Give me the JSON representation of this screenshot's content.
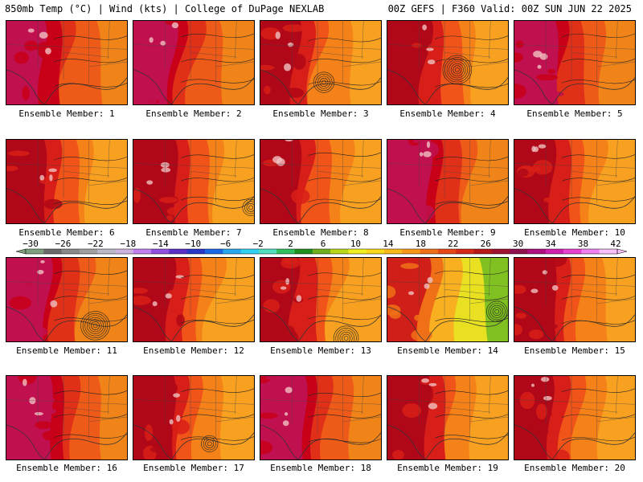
{
  "header": {
    "left": "850mb Temp (°C) | Wind (kts) | College of DuPage NEXLAB",
    "right": "00Z GEFS | F360 Valid: 00Z SUN JUN 22 2025"
  },
  "members": [
    {
      "label": "Ensemble Member: 1",
      "palette": "hot",
      "low": null
    },
    {
      "label": "Ensemble Member: 2",
      "palette": "hot",
      "low": null
    },
    {
      "label": "Ensemble Member: 3",
      "palette": "warm",
      "low": "gulf-mid"
    },
    {
      "label": "Ensemble Member: 4",
      "palette": "warm",
      "low": "gulf-strong"
    },
    {
      "label": "Ensemble Member: 5",
      "palette": "hot",
      "low": null
    },
    {
      "label": "Ensemble Member: 6",
      "palette": "warm",
      "low": null
    },
    {
      "label": "Ensemble Member: 7",
      "palette": "warm",
      "low": "florida"
    },
    {
      "label": "Ensemble Member: 8",
      "palette": "warm",
      "low": null
    },
    {
      "label": "Ensemble Member: 9",
      "palette": "hot",
      "low": null
    },
    {
      "label": "Ensemble Member: 10",
      "palette": "warm",
      "low": null
    },
    {
      "label": "Ensemble Member: 11",
      "palette": "hot",
      "low": "coast-strong"
    },
    {
      "label": "Ensemble Member: 12",
      "palette": "warm",
      "low": null
    },
    {
      "label": "Ensemble Member: 13",
      "palette": "warm",
      "low": "coast-mid"
    },
    {
      "label": "Ensemble Member: 14",
      "palette": "cool",
      "low": "east"
    },
    {
      "label": "Ensemble Member: 15",
      "palette": "warm",
      "low": null
    },
    {
      "label": "Ensemble Member: 16",
      "palette": "hot",
      "low": null
    },
    {
      "label": "Ensemble Member: 17",
      "palette": "warm",
      "low": "coast-small"
    },
    {
      "label": "Ensemble Member: 18",
      "palette": "hot",
      "low": null
    },
    {
      "label": "Ensemble Member: 19",
      "palette": "warm",
      "low": null
    },
    {
      "label": "Ensemble Member: 20",
      "palette": "warm",
      "low": null
    }
  ],
  "colorbar": {
    "ticks": [
      "-30",
      "-26",
      "-22",
      "-18",
      "-14",
      "-10",
      "-6",
      "-2",
      "2",
      "6",
      "10",
      "14",
      "18",
      "22",
      "26",
      "30",
      "34",
      "38",
      "42"
    ],
    "colors": [
      "#7fa07f",
      "#6a6a6a",
      "#8a8a8a",
      "#a0a0a0",
      "#b9b9c7",
      "#cdb2e0",
      "#c080f0",
      "#9050e0",
      "#5a30c8",
      "#2838c8",
      "#1a68e8",
      "#25a8f0",
      "#30d0f0",
      "#50e0c0",
      "#30c060",
      "#209020",
      "#70b020",
      "#b8d818",
      "#f0f020",
      "#f8d818",
      "#f8b818",
      "#f89818",
      "#f07018",
      "#e84818",
      "#d82818",
      "#b81818",
      "#a01030",
      "#901050",
      "#b01080",
      "#d020b0",
      "#e840d0",
      "#f080f0",
      "#f8c0f8"
    ]
  },
  "palettes": {
    "hot": [
      "#c01050",
      "#c80018",
      "#e03018",
      "#ee5a18",
      "#f08418"
    ],
    "warm": [
      "#b00818",
      "#d81e18",
      "#f05418",
      "#f58218",
      "#f8a020"
    ],
    "cool": [
      "#d01e18",
      "#f07018",
      "#f8b020",
      "#e8e020",
      "#80c020"
    ]
  }
}
